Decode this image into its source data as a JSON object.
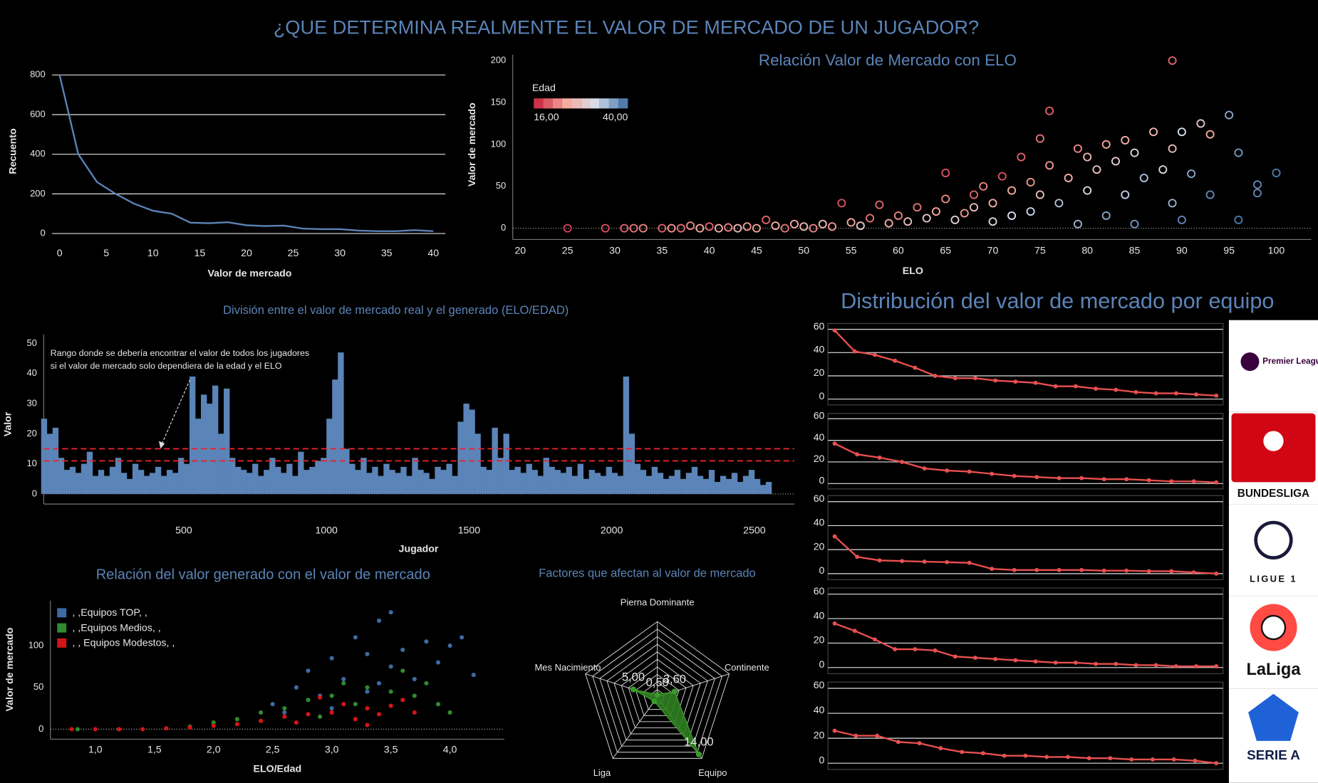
{
  "title": "¿QUE DETERMINA REALMENTE EL VALOR DE MERCADO DE UN JUGADOR?",
  "chart_data": [
    {
      "type": "line",
      "x_label": "Valor de mercado",
      "y_label": "Recuento",
      "color": "#5b84b8",
      "x": [
        0,
        2,
        4,
        6,
        8,
        10,
        12,
        14,
        16,
        18,
        20,
        22,
        24,
        26,
        28,
        30,
        32,
        34,
        36,
        38,
        40
      ],
      "values": [
        800,
        400,
        260,
        200,
        150,
        115,
        100,
        55,
        52,
        57,
        42,
        38,
        40,
        25,
        22,
        22,
        15,
        12,
        12,
        17,
        12
      ],
      "xlim": [
        -0.8,
        41.3
      ],
      "ylim": [
        -30,
        830
      ],
      "xticks": [
        0,
        5,
        10,
        15,
        20,
        25,
        30,
        35,
        40
      ],
      "yticks": [
        0,
        200,
        400,
        600,
        800
      ],
      "grid": true
    },
    {
      "type": "scatter",
      "title": "Relación Valor de Mercado con ELO",
      "x_label": "ELO",
      "y_label": "Valor de mercado",
      "color_label": "Edad",
      "color_range": [
        {
          "value": 16,
          "label": "16,00"
        },
        {
          "value": 40,
          "label": "40,00"
        }
      ],
      "color_scale": [
        "#c41e3a",
        "#f7a89c",
        "#d5dfec",
        "#3b6aa3"
      ],
      "x": [
        25,
        29,
        31,
        32,
        33,
        35,
        36,
        37,
        38,
        39,
        40,
        41,
        42,
        43,
        44,
        45,
        46,
        47,
        48,
        49,
        50,
        51,
        52,
        53,
        54,
        55,
        56,
        57,
        58,
        59,
        60,
        61,
        62,
        63,
        64,
        65,
        65,
        66,
        67,
        68,
        68,
        69,
        70,
        70,
        71,
        72,
        72,
        73,
        74,
        74,
        75,
        75,
        76,
        76,
        77,
        78,
        79,
        79,
        80,
        80,
        81,
        82,
        82,
        83,
        84,
        84,
        85,
        85,
        86,
        87,
        88,
        89,
        89,
        89,
        90,
        90,
        91,
        92,
        93,
        93,
        95,
        96,
        96,
        98,
        98,
        100
      ],
      "values": [
        0,
        0,
        0,
        0,
        0,
        0,
        0,
        0,
        3,
        0,
        2,
        0,
        1,
        0,
        2,
        0,
        10,
        3,
        0,
        5,
        2,
        0,
        5,
        2,
        30,
        7,
        3,
        12,
        28,
        6,
        15,
        8,
        25,
        12,
        20,
        66,
        35,
        10,
        18,
        40,
        25,
        50,
        8,
        30,
        62,
        45,
        15,
        85,
        55,
        20,
        40,
        107,
        140,
        75,
        30,
        60,
        95,
        5,
        85,
        45,
        70,
        100,
        15,
        80,
        105,
        40,
        90,
        5,
        60,
        115,
        70,
        200,
        95,
        30,
        115,
        10,
        65,
        125,
        40,
        112,
        135,
        90,
        10,
        42,
        52,
        66
      ],
      "color_values": [
        18,
        19,
        20,
        21,
        22,
        20,
        23,
        21,
        22,
        24,
        20,
        25,
        22,
        26,
        23,
        24,
        20,
        25,
        21,
        24,
        26,
        22,
        27,
        23,
        19,
        24,
        28,
        21,
        20,
        25,
        22,
        27,
        21,
        29,
        24,
        19,
        22,
        30,
        23,
        20,
        27,
        22,
        31,
        25,
        19,
        24,
        32,
        20,
        23,
        33,
        27,
        21,
        20,
        23,
        34,
        25,
        22,
        35,
        26,
        30,
        28,
        24,
        36,
        29,
        25,
        33,
        30,
        37,
        34,
        26,
        31,
        20,
        27,
        35,
        32,
        38,
        36,
        28,
        38,
        24,
        36,
        37,
        39,
        38,
        38,
        39
      ],
      "xlim": [
        19.2,
        103.7
      ],
      "ylim": [
        -13.4,
        207
      ],
      "xticks": [
        20,
        25,
        30,
        35,
        40,
        45,
        50,
        55,
        60,
        65,
        70,
        75,
        80,
        85,
        90,
        95,
        100
      ],
      "yticks": [
        0,
        50,
        100,
        150,
        200
      ]
    },
    {
      "type": "bar",
      "title": "División entre el valor de mercado real y el generado (ELO/EDAD)",
      "x_label": "Jugador",
      "y_label": "Valor",
      "annotation": [
        "Rango donde se debería encontrar el valor de todos los jugadores",
        "si el valor de mercado solo dependiera de la edad y el ELO"
      ],
      "color": "#5b84b8",
      "reference_lines": [
        15,
        11
      ],
      "reference_color": "#e8232a",
      "x": [
        10,
        30,
        50,
        70,
        90,
        110,
        130,
        150,
        170,
        190,
        210,
        230,
        250,
        270,
        290,
        310,
        330,
        350,
        370,
        390,
        410,
        430,
        450,
        470,
        490,
        510,
        530,
        550,
        570,
        590,
        610,
        630,
        650,
        670,
        690,
        710,
        730,
        750,
        770,
        790,
        810,
        830,
        850,
        870,
        890,
        910,
        930,
        950,
        970,
        990,
        1010,
        1030,
        1050,
        1070,
        1090,
        1110,
        1130,
        1150,
        1170,
        1190,
        1210,
        1230,
        1250,
        1270,
        1290,
        1310,
        1330,
        1350,
        1370,
        1390,
        1410,
        1430,
        1450,
        1470,
        1490,
        1510,
        1530,
        1550,
        1570,
        1590,
        1610,
        1630,
        1650,
        1670,
        1690,
        1710,
        1730,
        1750,
        1770,
        1790,
        1810,
        1830,
        1850,
        1870,
        1890,
        1910,
        1930,
        1950,
        1970,
        1990,
        2010,
        2030,
        2050,
        2070,
        2090,
        2110,
        2130,
        2150,
        2170,
        2190,
        2210,
        2230,
        2250,
        2270,
        2290,
        2310,
        2330,
        2350,
        2370,
        2390,
        2410,
        2430,
        2450,
        2470,
        2490,
        2510,
        2530,
        2550
      ],
      "values": [
        25,
        20,
        22,
        12,
        8,
        9,
        7,
        10,
        14,
        6,
        8,
        6,
        9,
        12,
        7,
        5,
        10,
        8,
        6,
        7,
        9,
        6,
        8,
        7,
        12,
        10,
        39,
        25,
        33,
        30,
        36,
        20,
        35,
        12,
        9,
        8,
        7,
        10,
        6,
        8,
        12,
        9,
        7,
        10,
        6,
        14,
        8,
        9,
        11,
        12,
        25,
        38,
        47,
        15,
        10,
        8,
        12,
        7,
        9,
        6,
        10,
        8,
        7,
        9,
        6,
        12,
        8,
        7,
        5,
        9,
        8,
        10,
        6,
        24,
        30,
        28,
        20,
        9,
        8,
        22,
        12,
        20,
        8,
        9,
        7,
        10,
        8,
        6,
        12,
        9,
        8,
        7,
        9,
        6,
        10,
        5,
        8,
        7,
        6,
        9,
        7,
        6,
        39,
        20,
        10,
        8,
        6,
        9,
        7,
        5,
        6,
        8,
        5,
        7,
        9,
        6,
        5,
        8,
        4,
        6,
        5,
        7,
        4,
        6,
        8,
        5,
        3,
        4
      ],
      "xlim": [
        9,
        2640
      ],
      "ylim": [
        -3.35,
        53
      ],
      "xticks": [
        500,
        1000,
        1500,
        2000,
        2500
      ],
      "yticks": [
        0,
        10,
        20,
        30,
        40,
        50
      ]
    },
    {
      "type": "grouped_scatter",
      "title": "Relación del valor generado con el valor de mercado",
      "x_label": "ELO/Edad",
      "y_label": "Valor de mercado",
      "series": [
        {
          "name": ", ,Equipos TOP, ,",
          "color": "#3d6aa2",
          "x": [
            2.5,
            2.7,
            2.8,
            2.9,
            3.0,
            3.1,
            3.2,
            3.3,
            3.4,
            3.5,
            3.5,
            3.6,
            3.7,
            3.8,
            3.9,
            4.0,
            4.1,
            4.2,
            3.3,
            2.6,
            3.0,
            3.4
          ],
          "values": [
            30,
            50,
            70,
            40,
            85,
            60,
            110,
            90,
            130,
            75,
            140,
            95,
            60,
            105,
            80,
            100,
            110,
            65,
            45,
            20,
            25,
            55
          ]
        },
        {
          "name": ", ,Equipos Medios, ,",
          "color": "#2e8b2e",
          "x": [
            1.8,
            2.0,
            2.2,
            2.4,
            2.6,
            2.8,
            3.0,
            3.1,
            3.3,
            3.5,
            3.6,
            3.7,
            3.8,
            3.9,
            4.0,
            3.2,
            2.9,
            0.85,
            1.2
          ],
          "values": [
            3,
            8,
            12,
            20,
            25,
            35,
            40,
            55,
            50,
            45,
            70,
            40,
            55,
            30,
            20,
            30,
            15,
            0,
            0
          ]
        },
        {
          "name": ", , Equipos Modestos, ,",
          "color": "#d41515",
          "x": [
            0.8,
            1.0,
            1.2,
            1.4,
            1.6,
            1.8,
            2.0,
            2.2,
            2.4,
            2.6,
            2.8,
            3.0,
            3.1,
            3.2,
            3.3,
            3.4,
            3.5,
            3.6,
            3.7,
            2.7,
            2.9,
            3.3
          ],
          "values": [
            0,
            0,
            0,
            0,
            1,
            2,
            4,
            6,
            10,
            15,
            18,
            20,
            30,
            12,
            25,
            18,
            28,
            35,
            20,
            8,
            38,
            5
          ]
        }
      ],
      "xlim": [
        0.62,
        4.46
      ],
      "ylim": [
        -12,
        154
      ],
      "xticks": [
        {
          "value": 1,
          "label": "1,0"
        },
        {
          "value": 1.5,
          "label": "1,5"
        },
        {
          "value": 2,
          "label": "2,0"
        },
        {
          "value": 2.5,
          "label": "2,5"
        },
        {
          "value": 3,
          "label": "3,0"
        },
        {
          "value": 3.5,
          "label": "3,5"
        },
        {
          "value": 4,
          "label": "4,0"
        }
      ],
      "yticks": [
        0,
        50,
        100
      ]
    },
    {
      "type": "radar",
      "title": "Factores que afectan al valor de mercado",
      "color": "#2e7d1f",
      "axes": [
        "Pierna Dominante",
        "Continente",
        "Equipo",
        "Liga",
        "Mes Nacimiento"
      ],
      "values": [
        0.5,
        3.6,
        14,
        1,
        5
      ],
      "value_labels": [
        "0,50",
        "3,60",
        "14,00",
        null,
        "5,00"
      ],
      "rlim": [
        0,
        15
      ]
    },
    {
      "type": "small_multiples",
      "title": "Distribución del valor de mercado por equipo",
      "color": "#e8504f",
      "ylim": [
        -5,
        65
      ],
      "yticks": [
        0,
        20,
        40,
        60
      ],
      "grid": true,
      "series": [
        {
          "name": "Premier League",
          "values": [
            59,
            41,
            38,
            33,
            27,
            20,
            18,
            18,
            16,
            15,
            14,
            11,
            11,
            9,
            8,
            6,
            5,
            5,
            4,
            3
          ]
        },
        {
          "name": "BUNDESLIGA",
          "values": [
            37,
            27,
            24,
            20,
            14,
            12,
            11,
            9,
            7,
            6,
            5,
            5,
            4,
            4,
            3,
            2,
            2,
            1
          ]
        },
        {
          "name": "LIGUE 1",
          "values": [
            31,
            14,
            11,
            10.5,
            10,
            9.5,
            9,
            4,
            3,
            3,
            3,
            3,
            2.5,
            2.5,
            2,
            2,
            1,
            0
          ]
        },
        {
          "name": "LaLiga",
          "values": [
            36,
            30,
            23,
            15,
            15,
            14,
            9,
            8,
            7,
            6,
            5,
            4,
            4,
            3,
            3,
            2,
            2,
            1,
            1,
            1
          ]
        },
        {
          "name": "SERIE A",
          "values": [
            26,
            22,
            22,
            17,
            16,
            12,
            9,
            8,
            6,
            6,
            5,
            5,
            4,
            4,
            3,
            3,
            3,
            2,
            0
          ]
        }
      ]
    }
  ]
}
